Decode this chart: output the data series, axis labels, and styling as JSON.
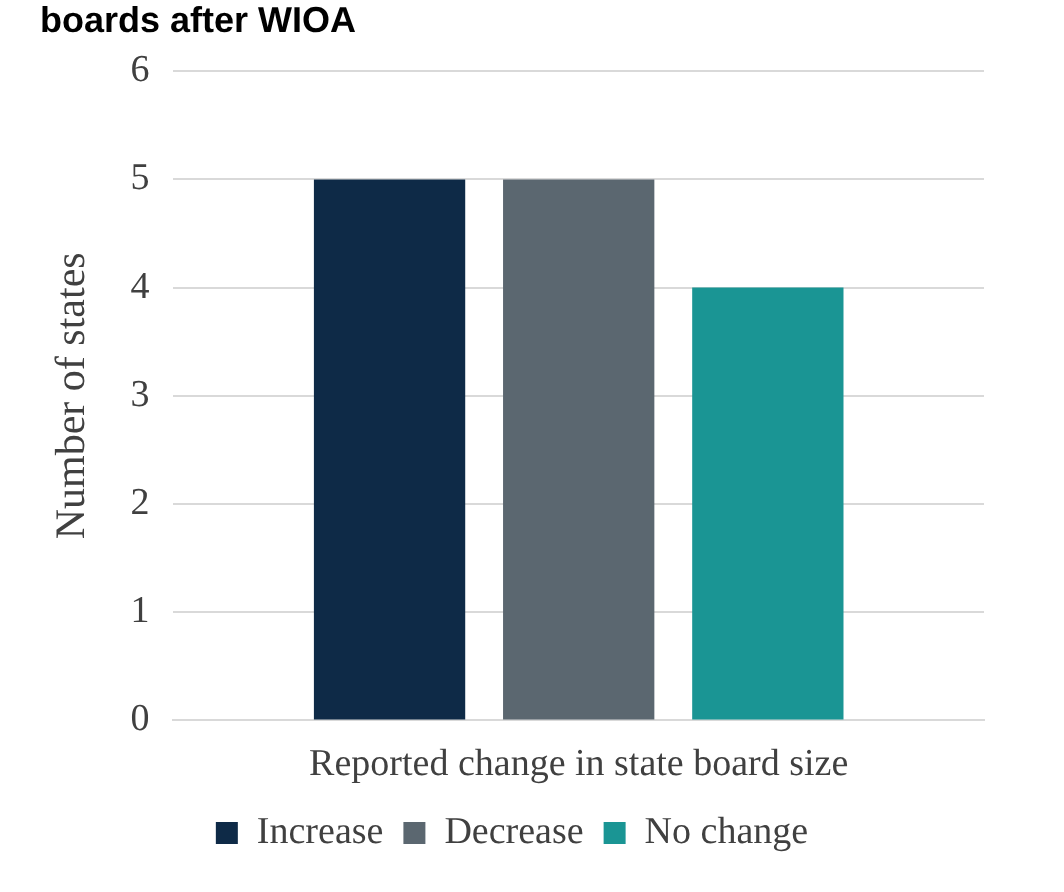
{
  "chart_data": {
    "type": "bar",
    "title": "boards after WIOA",
    "ylabel": "Number of states",
    "categories": [
      "Reported change in state board size"
    ],
    "series": [
      {
        "name": "Increase",
        "color": "#0e2a47",
        "values": [
          5
        ]
      },
      {
        "name": "Decrease",
        "color": "#5b6770",
        "values": [
          5
        ]
      },
      {
        "name": "No change",
        "color": "#1a9594",
        "values": [
          4
        ]
      }
    ],
    "ylim": [
      0,
      6
    ],
    "yticks": [
      0,
      1,
      2,
      3,
      4,
      5,
      6
    ],
    "grid": "y",
    "legend": "bottom"
  }
}
